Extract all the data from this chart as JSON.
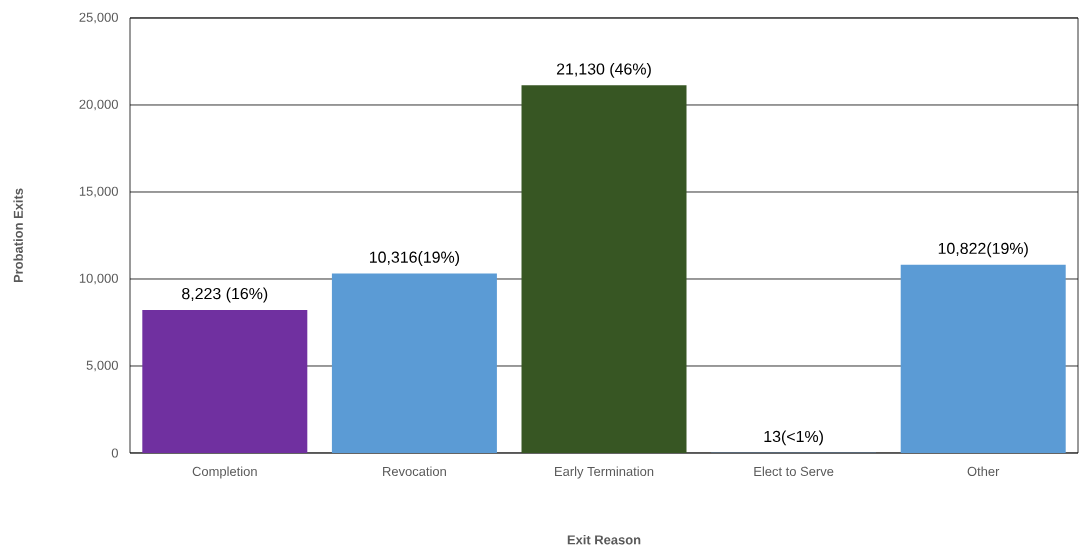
{
  "chart_data": {
    "type": "bar",
    "xlabel": "Exit Reason",
    "ylabel": "Probation Exits",
    "categories": [
      "Completion",
      "Revocation",
      "Early Termination",
      "Elect to Serve",
      "Other"
    ],
    "values": [
      8223,
      10316,
      21130,
      13,
      10822
    ],
    "colors": [
      "#7030a0",
      "#5b9bd5",
      "#375623",
      "#5b9bd5",
      "#5b9bd5"
    ],
    "value_labels": [
      "8,223 (16%)",
      "10,316(19%)",
      "21,130 (46%)",
      "13(<1%)",
      "10,822(19%)"
    ],
    "ylim": [
      0,
      25000
    ],
    "yticks": [
      {
        "value": 0,
        "label": "0"
      },
      {
        "value": 5000,
        "label": "5,000"
      },
      {
        "value": 10000,
        "label": "10,000"
      },
      {
        "value": 15000,
        "label": "15,000"
      },
      {
        "value": 20000,
        "label": "20,000"
      },
      {
        "value": 25000,
        "label": "25,000"
      }
    ],
    "grid": "y"
  }
}
